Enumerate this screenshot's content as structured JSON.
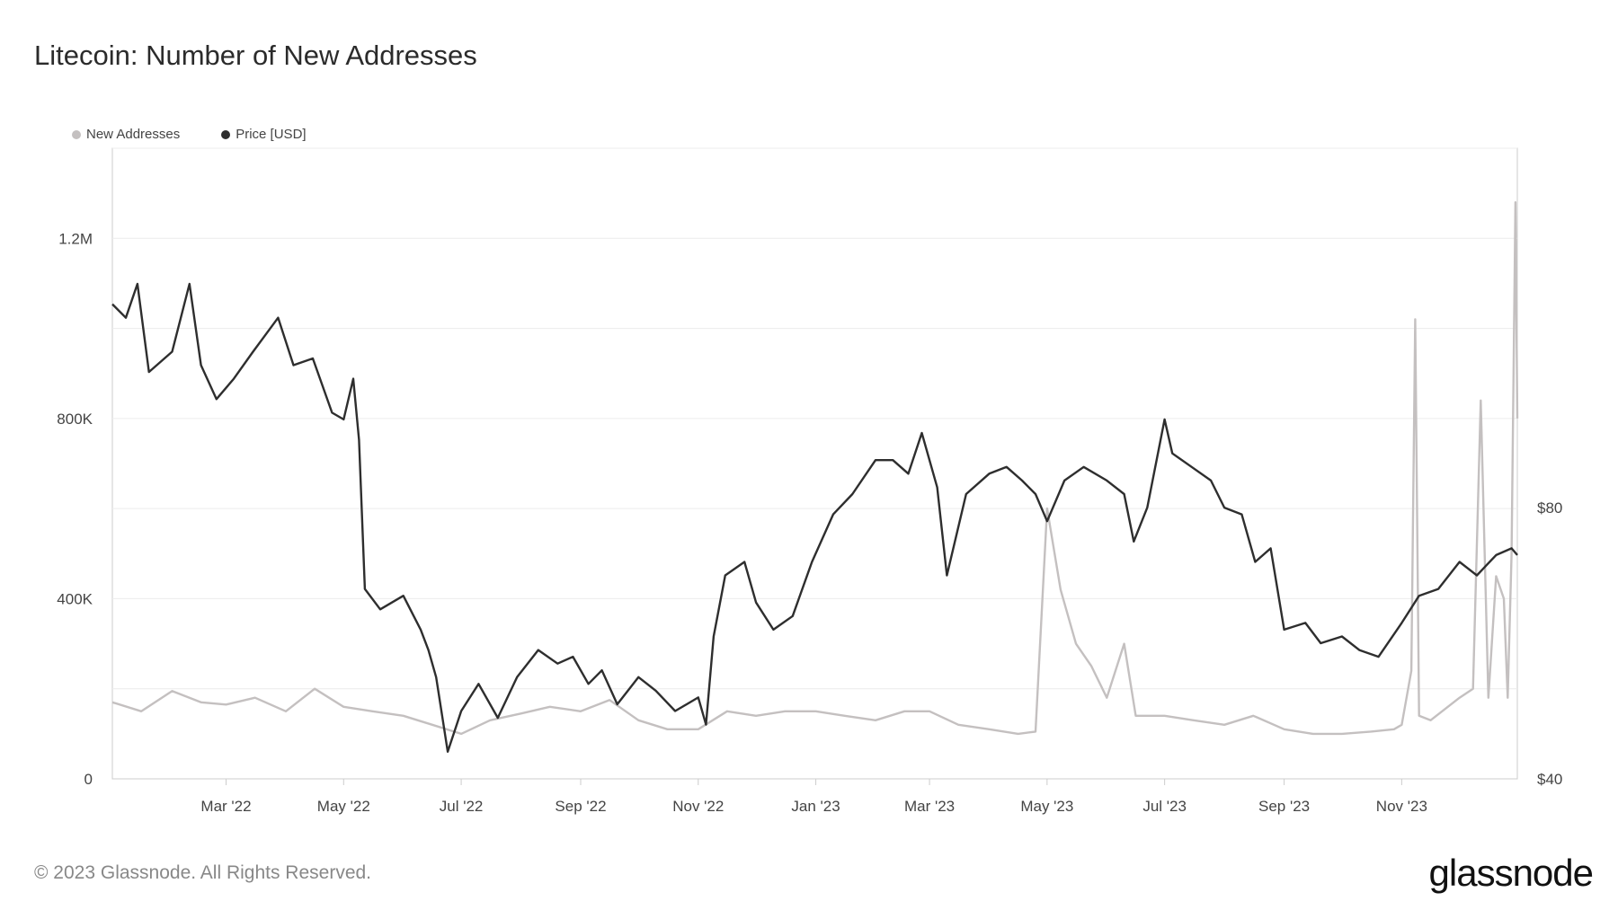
{
  "title": "Litecoin: Number of New Addresses",
  "footer": "© 2023 Glassnode. All Rights Reserved.",
  "brand": "glassnode",
  "colors": {
    "new_addresses": "#c4c0c0",
    "price": "#2e2e2e",
    "grid": "#ececec",
    "axis": "#cccccc"
  },
  "chart_data": {
    "type": "line",
    "title": "Litecoin: Number of New Addresses",
    "legend_position": "top-left",
    "grid": true,
    "series": [
      {
        "name": "New Addresses",
        "axis": "left",
        "x": [
          "2022-01-01",
          "2022-01-16",
          "2022-02-01",
          "2022-02-16",
          "2022-03-01",
          "2022-03-16",
          "2022-04-01",
          "2022-04-16",
          "2022-05-01",
          "2022-05-16",
          "2022-06-01",
          "2022-06-16",
          "2022-07-01",
          "2022-07-16",
          "2022-08-01",
          "2022-08-16",
          "2022-09-01",
          "2022-09-16",
          "2022-10-01",
          "2022-10-16",
          "2022-11-01",
          "2022-11-16",
          "2022-12-01",
          "2022-12-16",
          "2023-01-01",
          "2023-01-16",
          "2023-02-01",
          "2023-02-16",
          "2023-03-01",
          "2023-03-16",
          "2023-04-01",
          "2023-04-16",
          "2023-04-25",
          "2023-05-01",
          "2023-05-08",
          "2023-05-16",
          "2023-05-24",
          "2023-06-01",
          "2023-06-10",
          "2023-06-16",
          "2023-07-01",
          "2023-07-16",
          "2023-08-01",
          "2023-08-16",
          "2023-09-01",
          "2023-09-16",
          "2023-10-01",
          "2023-10-16",
          "2023-10-28",
          "2023-11-01",
          "2023-11-06",
          "2023-11-08",
          "2023-11-10",
          "2023-11-16",
          "2023-12-01",
          "2023-12-08",
          "2023-12-12",
          "2023-12-16",
          "2023-12-20",
          "2023-12-24",
          "2023-12-26",
          "2023-12-28",
          "2023-12-30",
          "2023-12-31"
        ],
        "values": [
          170000,
          150000,
          195000,
          170000,
          165000,
          180000,
          150000,
          200000,
          160000,
          150000,
          140000,
          120000,
          100000,
          130000,
          145000,
          160000,
          150000,
          175000,
          130000,
          110000,
          110000,
          150000,
          140000,
          150000,
          150000,
          140000,
          130000,
          150000,
          150000,
          120000,
          110000,
          100000,
          105000,
          600000,
          420000,
          300000,
          250000,
          180000,
          300000,
          140000,
          140000,
          130000,
          120000,
          140000,
          110000,
          100000,
          100000,
          105000,
          110000,
          120000,
          240000,
          1020000,
          140000,
          130000,
          180000,
          200000,
          840000,
          180000,
          450000,
          400000,
          180000,
          500000,
          1280000,
          800000
        ]
      },
      {
        "name": "Price [USD]",
        "axis": "right",
        "x": [
          "2022-01-01",
          "2022-01-08",
          "2022-01-14",
          "2022-01-20",
          "2022-02-01",
          "2022-02-10",
          "2022-02-16",
          "2022-02-24",
          "2022-03-05",
          "2022-03-15",
          "2022-03-28",
          "2022-04-05",
          "2022-04-15",
          "2022-04-25",
          "2022-05-01",
          "2022-05-06",
          "2022-05-09",
          "2022-05-12",
          "2022-05-20",
          "2022-06-01",
          "2022-06-10",
          "2022-06-14",
          "2022-06-18",
          "2022-06-24",
          "2022-07-01",
          "2022-07-10",
          "2022-07-20",
          "2022-07-30",
          "2022-08-10",
          "2022-08-20",
          "2022-08-28",
          "2022-09-05",
          "2022-09-12",
          "2022-09-20",
          "2022-10-01",
          "2022-10-10",
          "2022-10-20",
          "2022-11-01",
          "2022-11-05",
          "2022-11-09",
          "2022-11-15",
          "2022-11-25",
          "2022-12-01",
          "2022-12-10",
          "2022-12-20",
          "2022-12-30",
          "2023-01-10",
          "2023-01-20",
          "2023-02-01",
          "2023-02-10",
          "2023-02-18",
          "2023-02-25",
          "2023-03-05",
          "2023-03-10",
          "2023-03-20",
          "2023-04-01",
          "2023-04-10",
          "2023-04-18",
          "2023-04-25",
          "2023-05-01",
          "2023-05-10",
          "2023-05-20",
          "2023-06-01",
          "2023-06-10",
          "2023-06-15",
          "2023-06-22",
          "2023-07-01",
          "2023-07-05",
          "2023-07-15",
          "2023-07-25",
          "2023-08-01",
          "2023-08-10",
          "2023-08-17",
          "2023-08-25",
          "2023-09-01",
          "2023-09-12",
          "2023-09-20",
          "2023-10-01",
          "2023-10-10",
          "2023-10-20",
          "2023-11-01",
          "2023-11-10",
          "2023-11-20",
          "2023-12-01",
          "2023-12-10",
          "2023-12-20",
          "2023-12-28",
          "2023-12-31"
        ],
        "values": [
          110,
          108,
          113,
          100,
          103,
          113,
          101,
          96,
          99,
          103,
          108,
          101,
          102,
          94,
          93,
          99,
          90,
          68,
          65,
          67,
          62,
          59,
          55,
          44,
          50,
          54,
          49,
          55,
          59,
          57,
          58,
          54,
          56,
          51,
          55,
          53,
          50,
          52,
          48,
          61,
          70,
          72,
          66,
          62,
          64,
          72,
          79,
          82,
          87,
          87,
          85,
          91,
          83,
          70,
          82,
          85,
          86,
          84,
          82,
          78,
          84,
          86,
          84,
          82,
          75,
          80,
          93,
          88,
          86,
          84,
          80,
          79,
          72,
          74,
          62,
          63,
          60,
          61,
          59,
          58,
          63,
          67,
          68,
          72,
          70,
          73,
          74,
          73
        ]
      }
    ],
    "x_ticks": [
      "Mar '22",
      "May '22",
      "Jul '22",
      "Sep '22",
      "Nov '22",
      "Jan '23",
      "Mar '23",
      "May '23",
      "Jul '23",
      "Sep '23",
      "Nov '23"
    ],
    "x_range": [
      "2022-01-01",
      "2023-12-31"
    ],
    "y_left": {
      "ticks": [
        "0",
        "400K",
        "800K",
        "1.2M"
      ],
      "tick_values": [
        0,
        400000,
        800000,
        1200000
      ],
      "range": [
        0,
        1400000
      ]
    },
    "y_right": {
      "ticks": [
        "$40",
        "$80"
      ],
      "tick_values": [
        40,
        80
      ],
      "range": [
        40,
        133
      ]
    }
  }
}
